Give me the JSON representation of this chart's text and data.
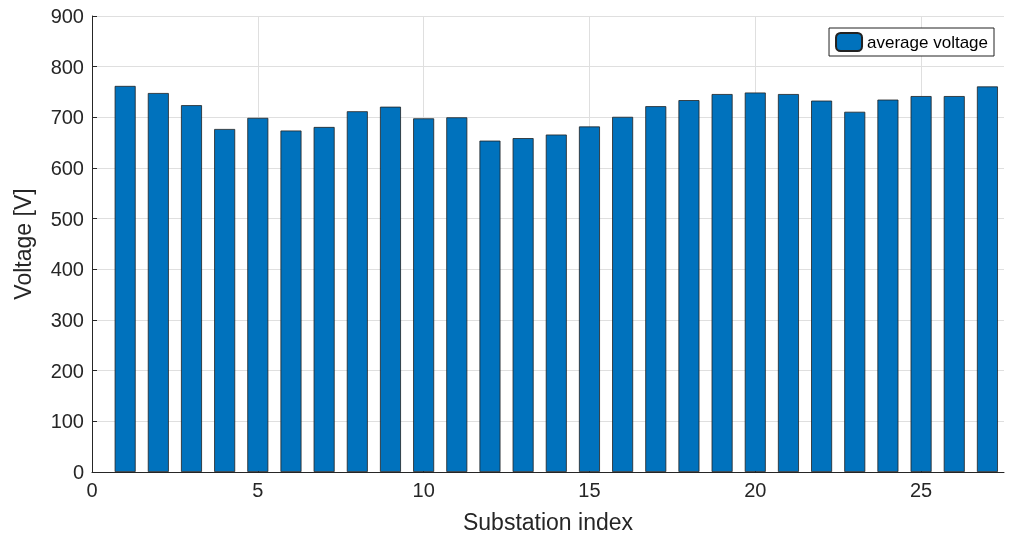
{
  "chart_data": {
    "type": "bar",
    "xlabel": "Substation index",
    "ylabel": "Voltage [V]",
    "x": [
      1,
      2,
      3,
      4,
      5,
      6,
      7,
      8,
      9,
      10,
      11,
      12,
      13,
      14,
      15,
      16,
      17,
      18,
      19,
      20,
      21,
      22,
      23,
      24,
      25,
      26,
      27
    ],
    "series": [
      {
        "name": "average voltage",
        "color": "#0072bd",
        "values": [
          762,
          748,
          724,
          677,
          699,
          674,
          681,
          712,
          721,
          698,
          700,
          654,
          659,
          666,
          682,
          701,
          722,
          734,
          746,
          749,
          746,
          733,
          711,
          735,
          742,
          742,
          761
        ]
      }
    ],
    "xlim": [
      0,
      27.5
    ],
    "xticks": [
      0,
      5,
      10,
      15,
      20,
      25
    ],
    "ylim": [
      0,
      900
    ],
    "yticks": [
      0,
      100,
      200,
      300,
      400,
      500,
      600,
      700,
      800,
      900
    ],
    "grid": true,
    "legend": "top right"
  }
}
